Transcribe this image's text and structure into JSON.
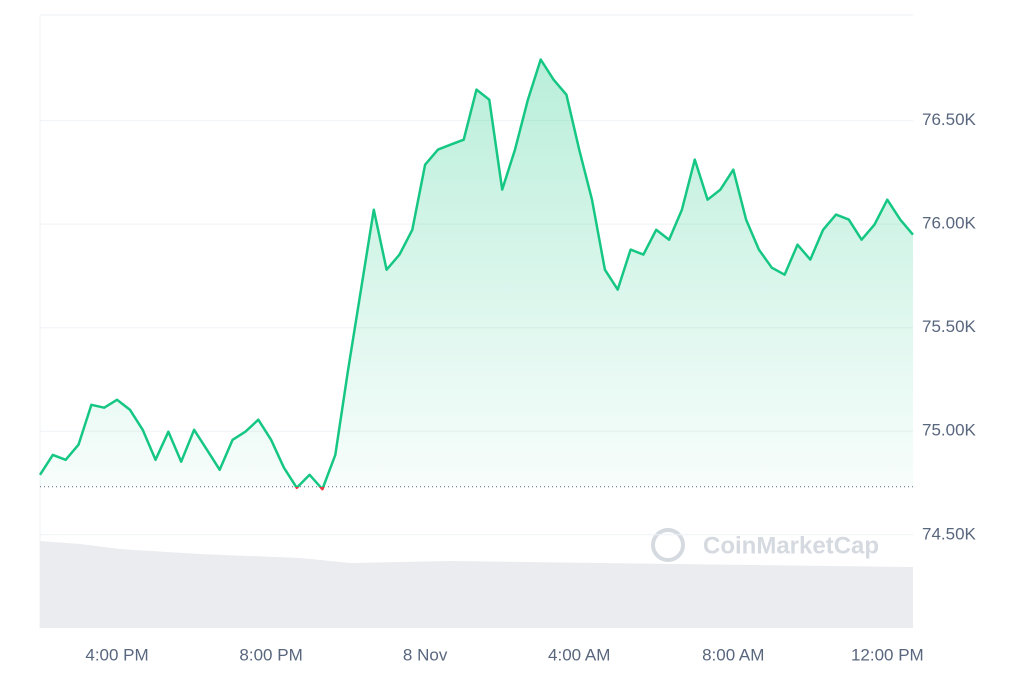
{
  "chart_data": {
    "type": "line",
    "categories": [
      null,
      null,
      null,
      null,
      null,
      null,
      "4:00 PM",
      null,
      null,
      null,
      null,
      null,
      null,
      null,
      null,
      null,
      null,
      null,
      "8:00 PM",
      null,
      null,
      null,
      null,
      null,
      null,
      null,
      null,
      null,
      null,
      null,
      "8 Nov",
      null,
      null,
      null,
      null,
      null,
      null,
      null,
      null,
      null,
      null,
      null,
      "4:00 AM",
      null,
      null,
      null,
      null,
      null,
      null,
      null,
      null,
      null,
      null,
      null,
      "8:00 AM",
      null,
      null,
      null,
      null,
      null,
      null,
      null,
      null,
      null,
      null,
      null,
      "12:00 PM",
      null,
      null
    ],
    "values": [
      74790,
      74886,
      74862,
      74935,
      75128,
      75114,
      75152,
      75104,
      75007,
      74862,
      74998,
      74853,
      75007,
      74911,
      74814,
      74959,
      74998,
      75056,
      74959,
      74824,
      74727,
      74790,
      74720,
      74886,
      75297,
      75684,
      76070,
      75780,
      75853,
      75973,
      76287,
      76360,
      76384,
      76408,
      76650,
      76601,
      76167,
      76360,
      76601,
      76795,
      76698,
      76625,
      76360,
      76118,
      75780,
      75684,
      75877,
      75853,
      75973,
      75925,
      76070,
      76312,
      76118,
      76167,
      76263,
      76022,
      75877,
      75790,
      75756,
      75901,
      75829,
      75973,
      76046,
      76022,
      75925,
      75998,
      76118,
      76022,
      75949
    ],
    "color": "#16c784",
    "down_color": "#ea3943",
    "baseline": 74732,
    "ylim": [
      74050,
      77010
    ],
    "yticks": [
      {
        "value": 74500,
        "label": "74.50K"
      },
      {
        "value": 75000,
        "label": "75.00K"
      },
      {
        "value": 75500,
        "label": "75.50K"
      },
      {
        "value": 76000,
        "label": "76.00K"
      },
      {
        "value": 76500,
        "label": "76.50K"
      }
    ],
    "grid": true,
    "watermark": "CoinMarketCap"
  }
}
